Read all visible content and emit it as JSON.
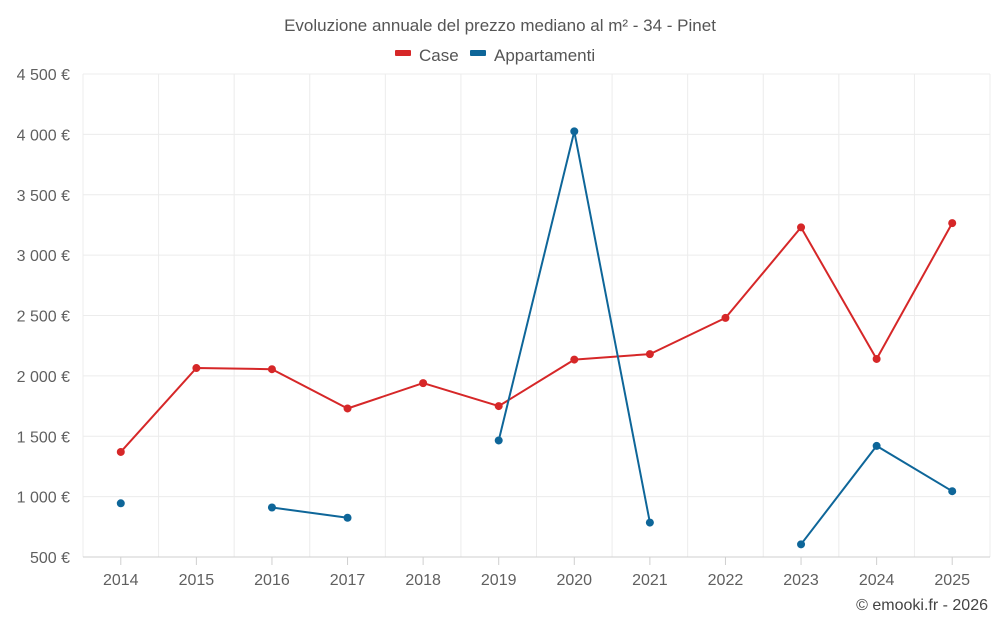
{
  "chart_data": {
    "type": "line",
    "title": "Evoluzione annuale del prezzo mediano al m² - 34 - Pinet",
    "categories": [
      "2014",
      "2015",
      "2016",
      "2017",
      "2018",
      "2019",
      "2020",
      "2021",
      "2022",
      "2023",
      "2024",
      "2025"
    ],
    "ylim": [
      500,
      4500
    ],
    "y_ticks": [
      500,
      1000,
      1500,
      2000,
      2500,
      3000,
      3500,
      4000,
      4500
    ],
    "y_tick_labels": [
      "500 €",
      "1 000 €",
      "1 500 €",
      "2 000 €",
      "2 500 €",
      "3 000 €",
      "3 500 €",
      "4 000 €",
      "4 500 €"
    ],
    "grid": true,
    "legend_position": "top-center",
    "series": [
      {
        "name": "Case",
        "color": "#d62728",
        "values": [
          1370,
          2065,
          2055,
          1730,
          1940,
          1750,
          2135,
          2180,
          2480,
          3230,
          2140,
          3265
        ]
      },
      {
        "name": "Appartamenti",
        "color": "#0e6699",
        "values": [
          945,
          null,
          910,
          825,
          null,
          1465,
          4025,
          785,
          null,
          605,
          1420,
          1045
        ]
      }
    ],
    "credit": "© emooki.fr - 2026"
  }
}
